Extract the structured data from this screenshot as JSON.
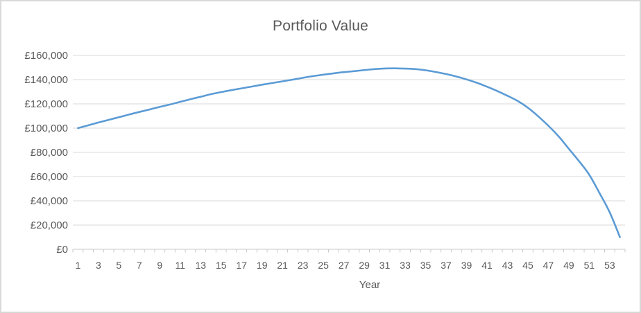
{
  "chart": {
    "title": "Portfolio Value",
    "x_axis_title": "Year",
    "colors": {
      "series": "#5B9BD5",
      "text": "#595959",
      "gridline": "#D9D9D9",
      "axis": "#C9C9C9",
      "frame_border": "#D9D9D9",
      "background": "#FFFFFF"
    }
  },
  "chart_data": {
    "type": "line",
    "title": "Portfolio Value",
    "xlabel": "Year",
    "ylabel": "",
    "smooth": true,
    "grid": true,
    "legend_position": "none",
    "ylim": [
      0,
      160000
    ],
    "y_tick_step": 20000,
    "y_tick_labels": [
      "£0",
      "£20,000",
      "£40,000",
      "£60,000",
      "£80,000",
      "£100,000",
      "£120,000",
      "£140,000",
      "£160,000"
    ],
    "y_tick_values": [
      0,
      20000,
      40000,
      60000,
      80000,
      100000,
      120000,
      140000,
      160000
    ],
    "x_tick_labels": [
      1,
      3,
      5,
      7,
      9,
      11,
      13,
      15,
      17,
      19,
      21,
      23,
      25,
      27,
      29,
      31,
      33,
      35,
      37,
      39,
      41,
      43,
      45,
      47,
      49,
      51,
      53
    ],
    "x": [
      1,
      2,
      3,
      4,
      5,
      6,
      7,
      8,
      9,
      10,
      11,
      12,
      13,
      14,
      15,
      16,
      17,
      18,
      19,
      20,
      21,
      22,
      23,
      24,
      25,
      26,
      27,
      28,
      29,
      30,
      31,
      32,
      33,
      34,
      35,
      36,
      37,
      38,
      39,
      40,
      41,
      42,
      43,
      44,
      45,
      46,
      47,
      48,
      49,
      50,
      51,
      52,
      53,
      54
    ],
    "series": [
      {
        "name": "Portfolio Value",
        "color": "#5B9BD5",
        "values": [
          100000,
          102300,
          104600,
          106800,
          109000,
          111200,
          113300,
          115400,
          117500,
          119500,
          121700,
          123800,
          125900,
          128000,
          129700,
          131300,
          132800,
          134300,
          135800,
          137200,
          138600,
          140000,
          141500,
          142900,
          144100,
          145200,
          146200,
          147000,
          147900,
          148700,
          149200,
          149300,
          149100,
          148700,
          147700,
          146300,
          144600,
          142600,
          140200,
          137400,
          134200,
          130600,
          126700,
          122400,
          116800,
          109800,
          102000,
          93200,
          83000,
          72700,
          61500,
          46500,
          30500,
          10000
        ]
      }
    ]
  }
}
